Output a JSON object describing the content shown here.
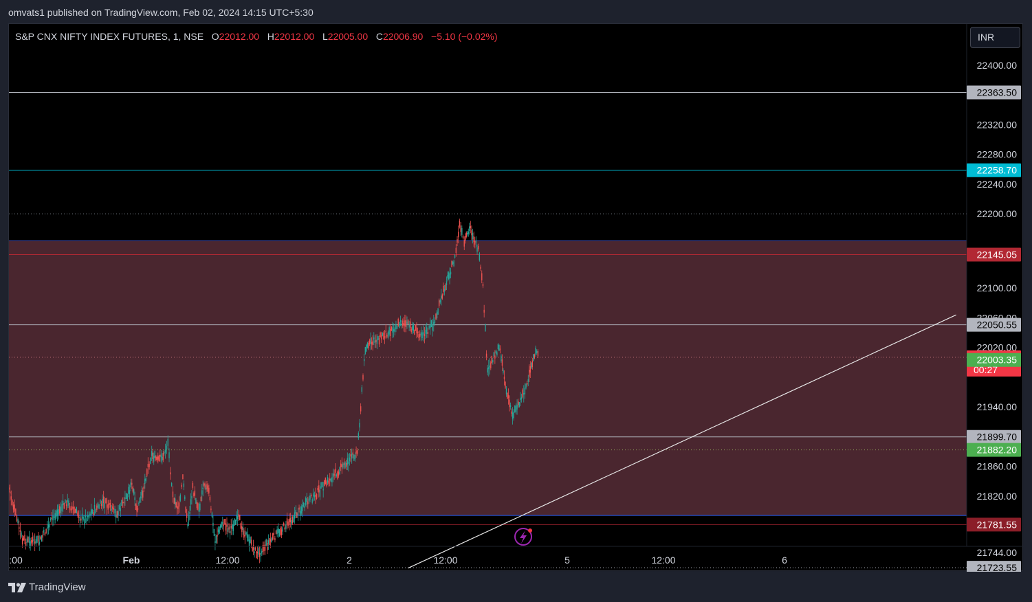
{
  "publish_info": "omvats1 published on TradingView.com, Feb 02, 2024 14:15 UTC+5:30",
  "legend": {
    "symbol": "S&P CNX NIFTY INDEX FUTURES, 1, NSE",
    "open_label": "O",
    "open": "22012.00",
    "high_label": "H",
    "high": "22012.00",
    "low_label": "L",
    "low": "22005.00",
    "close_label": "C",
    "close": "22006.90",
    "change": "−5.10 (−0.02%)"
  },
  "currency": "INR",
  "brand": "TradingView",
  "chart_data": {
    "type": "candlestick",
    "x_ticks": [
      ":00",
      "Feb",
      "12:00",
      "2",
      "12:00",
      "5",
      "12:00",
      "6"
    ],
    "y_ticks": [
      "22400.00",
      "22320.00",
      "22280.00",
      "22240.00",
      "22200.00",
      "22100.00",
      "22060.00",
      "22020.00",
      "21940.00",
      "21860.00",
      "21820.00",
      "21744.00"
    ],
    "ylim": [
      21720,
      22430
    ],
    "horizontal_lines": [
      {
        "price": 22363.5,
        "label": "22363.50",
        "color": "#b2b5be",
        "text_color": "#000000",
        "style": "solid"
      },
      {
        "price": 22258.7,
        "label": "22258.70",
        "color": "#00bcd4",
        "text_color": "#ffffff",
        "style": "solid"
      },
      {
        "price": 22145.05,
        "label": "22145.05",
        "color": "#b22833",
        "text_color": "#ffffff",
        "style": "solid"
      },
      {
        "price": 22050.55,
        "label": "22050.55",
        "color": "#b2b5be",
        "text_color": "#000000",
        "style": "solid"
      },
      {
        "price": 21899.7,
        "label": "21899.70",
        "color": "#b2b5be",
        "text_color": "#000000",
        "style": "solid"
      },
      {
        "price": 21781.55,
        "label": "21781.55",
        "color": "#8b1e28",
        "text_color": "#ffffff",
        "style": "solid"
      },
      {
        "price": 21723.55,
        "label": "21723.55",
        "color": "#b2b5be",
        "text_color": "#000000",
        "style": "dotted"
      }
    ],
    "price_markers": [
      {
        "price": 22006.9,
        "label": "22006.90",
        "sub": "00:27",
        "color": "#f23645"
      },
      {
        "price": 22003.35,
        "label": "22003.35",
        "color": "#4caf50"
      },
      {
        "price": 21882.2,
        "label": "21882.20",
        "color": "#4caf50"
      }
    ],
    "dotted_levels": [
      22200.0,
      22006.9,
      21882.2
    ],
    "zone": {
      "top": 22164,
      "bottom": 21794,
      "color": "#4a262f"
    },
    "trendline": {
      "from_time": "2024-02-02 10:50",
      "from_price": 21723,
      "to_time": "2024-02-06 16:40",
      "to_price": 22064
    },
    "price_path": [
      {
        "t": "2024-02-01 09:00",
        "p": 21830
      },
      {
        "t": "2024-02-01 09:20",
        "p": 21760
      },
      {
        "t": "2024-02-01 09:45",
        "p": 21758
      },
      {
        "t": "2024-02-01 10:05",
        "p": 21790
      },
      {
        "t": "2024-02-01 10:25",
        "p": 21812
      },
      {
        "t": "2024-02-01 10:50",
        "p": 21788
      },
      {
        "t": "2024-02-01 11:20",
        "p": 21812
      },
      {
        "t": "2024-02-01 11:40",
        "p": 21795
      },
      {
        "t": "2024-02-01 12:05",
        "p": 21835
      },
      {
        "t": "2024-02-01 12:25",
        "p": 21800
      },
      {
        "t": "2024-02-01 12:45",
        "p": 21820
      },
      {
        "t": "2024-02-01 13:10",
        "p": 21860
      },
      {
        "t": "2024-02-01 13:25",
        "p": 21876
      },
      {
        "t": "2024-02-01 13:50",
        "p": 21868
      },
      {
        "t": "2024-02-01 14:15",
        "p": 21876
      },
      {
        "t": "2024-02-01 14:30",
        "p": 21893
      },
      {
        "t": "2024-02-01 14:40",
        "p": 21855
      },
      {
        "t": "2024-02-01 14:55",
        "p": 21810
      },
      {
        "t": "2024-02-01 15:15",
        "p": 21805
      },
      {
        "t": "2024-02-01 15:30",
        "p": 21845
      },
      {
        "t": "2024-02-01 15:50",
        "p": 21780
      },
      {
        "t": "2024-02-01 16:10",
        "p": 21830
      },
      {
        "t": "2024-02-01 16:35",
        "p": 21802
      },
      {
        "t": "2024-02-01 16:55",
        "p": 21840
      },
      {
        "t": "2024-02-01 17:15",
        "p": 21825
      },
      {
        "t": "2024-02-01 17:40",
        "p": 21760
      },
      {
        "t": "2024-02-01 18:10",
        "p": 21785
      },
      {
        "t": "2024-02-01 18:40",
        "p": 21775
      },
      {
        "t": "2024-02-01 19:15",
        "p": 21790
      },
      {
        "t": "2024-02-01 19:40",
        "p": 21770
      },
      {
        "t": "2024-02-01 20:10",
        "p": 21752
      },
      {
        "t": "2024-02-01 20:30",
        "p": 21742
      },
      {
        "t": "2024-02-02 09:15",
        "p": 21880
      },
      {
        "t": "2024-02-02 09:30",
        "p": 22020
      },
      {
        "t": "2024-02-02 10:00",
        "p": 22035
      },
      {
        "t": "2024-02-02 10:40",
        "p": 22055
      },
      {
        "t": "2024-02-02 11:10",
        "p": 22040
      },
      {
        "t": "2024-02-02 11:25",
        "p": 22040
      },
      {
        "t": "2024-02-02 11:40",
        "p": 22055
      },
      {
        "t": "2024-02-02 12:00",
        "p": 22105
      },
      {
        "t": "2024-02-02 12:30",
        "p": 22140
      },
      {
        "t": "2024-02-02 12:45",
        "p": 22185
      },
      {
        "t": "2024-02-02 13:00",
        "p": 22160
      },
      {
        "t": "2024-02-02 13:20",
        "p": 22182
      },
      {
        "t": "2024-02-02 13:45",
        "p": 22150
      },
      {
        "t": "2024-02-02 14:00",
        "p": 22100
      },
      {
        "t": "2024-02-02 14:15",
        "p": 21985
      },
      {
        "t": "2024-02-02 14:35",
        "p": 22010
      },
      {
        "t": "2024-02-02 14:55",
        "p": 22020
      },
      {
        "t": "2024-02-02 15:15",
        "p": 21960
      },
      {
        "t": "2024-02-02 15:35",
        "p": 21930
      },
      {
        "t": "2024-02-02 16:00",
        "p": 21950
      },
      {
        "t": "2024-02-02 16:25",
        "p": 21975
      },
      {
        "t": "2024-02-02 16:45",
        "p": 22012
      },
      {
        "t": "2024-02-02 17:00",
        "p": 22007
      }
    ]
  }
}
